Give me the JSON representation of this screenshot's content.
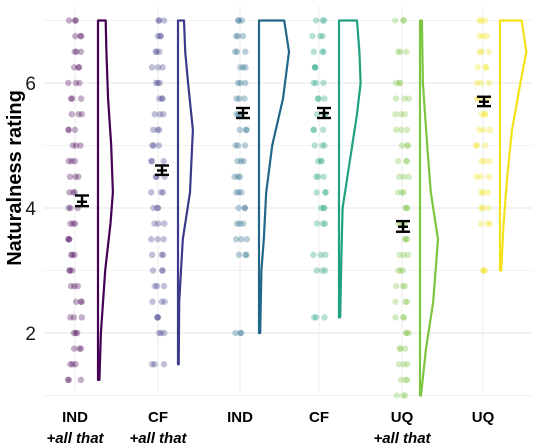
{
  "chart_data": {
    "type": "raincloud",
    "ylabel": "Naturalness rating",
    "ylim": [
      0.85,
      7.25
    ],
    "yticks": [
      2,
      4,
      6
    ],
    "grid": true,
    "categories": [
      {
        "label": "IND",
        "sublabel": "+all that",
        "color": "#440154",
        "mean": 4.1,
        "ci": [
          4.03,
          4.2
        ],
        "range": [
          1.25,
          7
        ]
      },
      {
        "label": "CF",
        "sublabel": "+all that",
        "color": "#3b3a8a",
        "mean": 4.6,
        "ci": [
          4.53,
          4.68
        ],
        "range": [
          1.5,
          7
        ]
      },
      {
        "label": "IND",
        "sublabel": "",
        "color": "#21678a",
        "mean": 5.52,
        "ci": [
          5.44,
          5.6
        ],
        "range": [
          2,
          7
        ]
      },
      {
        "label": "CF",
        "sublabel": "",
        "color": "#1fa17f",
        "mean": 5.52,
        "ci": [
          5.44,
          5.6
        ],
        "range": [
          2.25,
          7
        ]
      },
      {
        "label": "UQ",
        "sublabel": "+all that",
        "color": "#7cc540",
        "mean": 3.7,
        "ci": [
          3.62,
          3.79
        ],
        "range": [
          1,
          7
        ]
      },
      {
        "label": "UQ",
        "sublabel": "",
        "color": "#f3e21a",
        "mean": 5.7,
        "ci": [
          5.63,
          5.78
        ],
        "range": [
          3,
          7
        ]
      }
    ],
    "densities": [
      [
        [
          1.25,
          0.06
        ],
        [
          2,
          0.12
        ],
        [
          3,
          0.3
        ],
        [
          3.75,
          0.52
        ],
        [
          4.25,
          0.62
        ],
        [
          5,
          0.55
        ],
        [
          5.75,
          0.42
        ],
        [
          6.5,
          0.35
        ],
        [
          7,
          0.32
        ]
      ],
      [
        [
          1.5,
          0.03
        ],
        [
          2.5,
          0.05
        ],
        [
          3.5,
          0.2
        ],
        [
          4.25,
          0.5
        ],
        [
          5.25,
          0.62
        ],
        [
          6,
          0.42
        ],
        [
          6.5,
          0.3
        ],
        [
          7,
          0.25
        ]
      ],
      [
        [
          2,
          0.05
        ],
        [
          3,
          0.1
        ],
        [
          3.5,
          0.2
        ],
        [
          4.25,
          0.3
        ],
        [
          5,
          0.55
        ],
        [
          5.75,
          1
        ],
        [
          6.5,
          1.25
        ],
        [
          7,
          1.05
        ]
      ],
      [
        [
          2.25,
          0.05
        ],
        [
          3.25,
          0.1
        ],
        [
          4,
          0.15
        ],
        [
          4.75,
          0.45
        ],
        [
          5.5,
          0.75
        ],
        [
          6,
          0.9
        ],
        [
          6.5,
          0.85
        ],
        [
          7,
          0.75
        ]
      ],
      [
        [
          1,
          0.04
        ],
        [
          1.75,
          0.25
        ],
        [
          2.5,
          0.55
        ],
        [
          3.5,
          0.75
        ],
        [
          4.25,
          0.45
        ],
        [
          5,
          0.3
        ],
        [
          6,
          0.12
        ],
        [
          7,
          0.08
        ]
      ],
      [
        [
          3,
          0.05
        ],
        [
          3.75,
          0.15
        ],
        [
          4.5,
          0.3
        ],
        [
          5.25,
          0.5
        ],
        [
          6,
          0.85
        ],
        [
          6.5,
          1.1
        ],
        [
          7,
          0.9
        ]
      ]
    ],
    "points": [
      [
        1.25,
        1.5,
        1.75,
        2,
        2.25,
        2.5,
        2.75,
        3,
        3.25,
        3.5,
        3.75,
        4,
        4.25,
        4.5,
        4.75,
        5,
        5.25,
        5.5,
        5.75,
        6,
        6.25,
        6.5,
        6.75,
        7
      ],
      [
        1.5,
        2,
        2.25,
        2.5,
        2.75,
        3,
        3.25,
        3.5,
        3.75,
        4,
        4.25,
        4.5,
        4.75,
        5,
        5.25,
        5.5,
        5.75,
        6,
        6.25,
        6.5,
        6.75,
        7
      ],
      [
        2,
        3.25,
        3.5,
        3.75,
        4,
        4.25,
        4.5,
        4.75,
        5,
        5.25,
        5.5,
        5.75,
        6,
        6.25,
        6.5,
        6.75,
        7
      ],
      [
        2.25,
        3,
        3.25,
        3.75,
        4,
        4.25,
        4.5,
        4.75,
        5,
        5.25,
        5.5,
        5.75,
        6,
        6.25,
        6.5,
        6.75,
        7
      ],
      [
        1,
        1.25,
        1.5,
        1.75,
        2,
        2.25,
        2.5,
        2.75,
        3,
        3.25,
        3.5,
        3.75,
        4,
        4.25,
        4.5,
        4.75,
        5,
        5.25,
        5.5,
        5.75,
        6,
        6.5,
        7
      ],
      [
        3,
        3.75,
        4,
        4.25,
        4.5,
        4.75,
        5,
        5.25,
        5.5,
        5.75,
        6,
        6.25,
        6.5,
        6.75,
        7
      ]
    ]
  }
}
